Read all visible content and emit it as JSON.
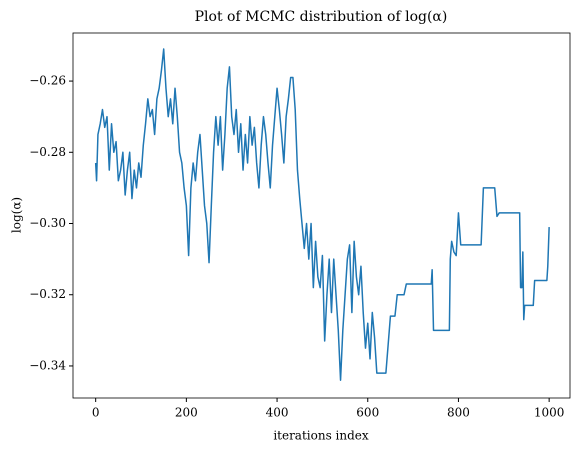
{
  "chart_data": {
    "type": "line",
    "title": "Plot of MCMC distribution of log(α)",
    "xlabel": "iterations index",
    "ylabel": "log(α)",
    "xlim": [
      -50,
      1046
    ],
    "ylim": [
      -0.349,
      -0.2465
    ],
    "xticks": [
      0,
      200,
      400,
      600,
      800,
      1000
    ],
    "yticks": [
      {
        "value": -0.26,
        "label": "−0.26"
      },
      {
        "value": -0.28,
        "label": "−0.28"
      },
      {
        "value": -0.3,
        "label": "−0.30"
      },
      {
        "value": -0.32,
        "label": "−0.32"
      },
      {
        "value": -0.34,
        "label": "−0.34"
      }
    ],
    "x": [
      0,
      2,
      5,
      10,
      15,
      20,
      25,
      30,
      35,
      40,
      45,
      50,
      55,
      60,
      65,
      70,
      75,
      80,
      85,
      90,
      95,
      100,
      105,
      110,
      115,
      120,
      125,
      130,
      135,
      140,
      145,
      150,
      155,
      160,
      165,
      170,
      175,
      180,
      185,
      190,
      195,
      200,
      205,
      210,
      215,
      220,
      225,
      230,
      235,
      240,
      245,
      250,
      255,
      260,
      265,
      270,
      275,
      280,
      285,
      290,
      295,
      300,
      305,
      310,
      315,
      320,
      325,
      330,
      335,
      340,
      345,
      350,
      355,
      360,
      365,
      370,
      375,
      380,
      385,
      390,
      395,
      400,
      405,
      410,
      415,
      420,
      425,
      430,
      435,
      440,
      445,
      450,
      455,
      460,
      465,
      470,
      475,
      480,
      485,
      490,
      495,
      500,
      505,
      510,
      515,
      520,
      525,
      530,
      535,
      540,
      545,
      550,
      555,
      560,
      565,
      570,
      575,
      580,
      585,
      590,
      595,
      600,
      605,
      610,
      615,
      620,
      640,
      645,
      650,
      660,
      665,
      680,
      685,
      740,
      742,
      745,
      780,
      782,
      785,
      790,
      795,
      800,
      805,
      850,
      855,
      880,
      885,
      890,
      935,
      937,
      940,
      942,
      944,
      946,
      965,
      968,
      995,
      997,
      1000
    ],
    "series": [
      {
        "name": "log(α)",
        "color": "#1f77b4",
        "values": [
          -0.283,
          -0.288,
          -0.275,
          -0.272,
          -0.268,
          -0.273,
          -0.27,
          -0.285,
          -0.272,
          -0.28,
          -0.277,
          -0.288,
          -0.285,
          -0.28,
          -0.292,
          -0.285,
          -0.28,
          -0.293,
          -0.285,
          -0.29,
          -0.283,
          -0.287,
          -0.278,
          -0.272,
          -0.265,
          -0.27,
          -0.268,
          -0.275,
          -0.265,
          -0.262,
          -0.257,
          -0.251,
          -0.262,
          -0.27,
          -0.265,
          -0.272,
          -0.262,
          -0.27,
          -0.28,
          -0.283,
          -0.29,
          -0.295,
          -0.309,
          -0.29,
          -0.283,
          -0.288,
          -0.28,
          -0.275,
          -0.285,
          -0.295,
          -0.3,
          -0.311,
          -0.295,
          -0.28,
          -0.27,
          -0.278,
          -0.27,
          -0.285,
          -0.275,
          -0.262,
          -0.256,
          -0.27,
          -0.275,
          -0.268,
          -0.28,
          -0.272,
          -0.285,
          -0.275,
          -0.283,
          -0.27,
          -0.278,
          -0.273,
          -0.283,
          -0.29,
          -0.278,
          -0.27,
          -0.275,
          -0.283,
          -0.29,
          -0.278,
          -0.27,
          -0.262,
          -0.268,
          -0.275,
          -0.283,
          -0.27,
          -0.265,
          -0.259,
          -0.259,
          -0.268,
          -0.285,
          -0.293,
          -0.3,
          -0.307,
          -0.3,
          -0.31,
          -0.3,
          -0.318,
          -0.305,
          -0.315,
          -0.318,
          -0.309,
          -0.333,
          -0.32,
          -0.31,
          -0.325,
          -0.31,
          -0.32,
          -0.33,
          -0.344,
          -0.33,
          -0.32,
          -0.31,
          -0.306,
          -0.325,
          -0.305,
          -0.315,
          -0.32,
          -0.312,
          -0.325,
          -0.335,
          -0.328,
          -0.338,
          -0.325,
          -0.332,
          -0.342,
          -0.342,
          -0.334,
          -0.326,
          -0.326,
          -0.32,
          -0.32,
          -0.317,
          -0.317,
          -0.313,
          -0.33,
          -0.33,
          -0.31,
          -0.305,
          -0.308,
          -0.309,
          -0.297,
          -0.306,
          -0.306,
          -0.29,
          -0.29,
          -0.298,
          -0.297,
          -0.297,
          -0.318,
          -0.318,
          -0.308,
          -0.327,
          -0.323,
          -0.323,
          -0.316,
          -0.316,
          -0.312,
          -0.301
        ]
      }
    ]
  }
}
